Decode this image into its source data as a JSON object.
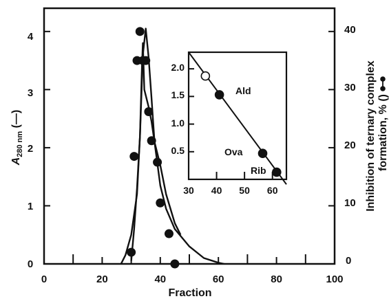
{
  "colors": {
    "ink": "#111111",
    "background": "#ffffff"
  },
  "chart_data": [
    {
      "type": "line",
      "xlabel": "Fraction",
      "ylabel_left": {
        "main": "A",
        "sub": "280 nm",
        "suffix": " (—)"
      },
      "ylabel_right": {
        "line1": "Inhibition of ternary complex",
        "line2": "formation, % (",
        "line2_suffix": ")"
      },
      "xlim": [
        0,
        100
      ],
      "ylim_left": [
        0,
        4.4
      ],
      "ylim_right": [
        0,
        44
      ],
      "x_ticks": [
        "0",
        "20",
        "40",
        "60",
        "80",
        "100"
      ],
      "y_left_ticks": [
        "0",
        "1",
        "2",
        "3",
        "4"
      ],
      "y_right_ticks": [
        "0",
        "10",
        "20",
        "30",
        "40"
      ],
      "grid": false,
      "series": [
        {
          "axis": "left",
          "style": "line",
          "x": [
            26.5,
            28,
            30,
            32,
            33,
            34,
            35,
            36,
            37,
            38,
            40,
            42,
            45,
            50,
            55,
            60,
            62
          ],
          "y": [
            0,
            0.15,
            0.5,
            1.2,
            2.2,
            3.6,
            4.05,
            3.55,
            2.85,
            2.1,
            1.35,
            0.95,
            0.6,
            0.3,
            0.1,
            0.02,
            0
          ]
        },
        {
          "axis": "right",
          "style": "line+markers",
          "markers_x": [
            30,
            31,
            32,
            33,
            34,
            35,
            36,
            37,
            39,
            40,
            43,
            45
          ],
          "markers_y": [
            2,
            18.5,
            35,
            40,
            35,
            35,
            26.2,
            21.2,
            17.5,
            10.5,
            5.2,
            0
          ],
          "curve_x": [
            30,
            31,
            32,
            33,
            33.7,
            34,
            34.5,
            35,
            36,
            37,
            38,
            40,
            42,
            45,
            47
          ],
          "curve_y": [
            0.5,
            6,
            13,
            22,
            34,
            38,
            30,
            29,
            27,
            24.5,
            21,
            17,
            12,
            7,
            5
          ]
        }
      ]
    },
    {
      "type": "scatter",
      "role": "inset",
      "xlim": [
        30,
        65
      ],
      "ylim": [
        0,
        2.3
      ],
      "x_ticks": [
        "30",
        "40",
        "50",
        "60"
      ],
      "y_ticks": [
        "0.5",
        "1.0",
        "1.5",
        "2.0"
      ],
      "points": [
        {
          "x": 36,
          "y": 1.87,
          "filled": false,
          "label": ""
        },
        {
          "x": 41,
          "y": 1.53,
          "filled": true,
          "label": "Ald"
        },
        {
          "x": 56.5,
          "y": 0.47,
          "filled": true,
          "label": "Ova"
        },
        {
          "x": 61.5,
          "y": 0.13,
          "filled": true,
          "label": "Rib"
        }
      ],
      "fit_line": {
        "x": [
          30,
          65
        ],
        "y": [
          2.3,
          -0.09
        ]
      }
    }
  ]
}
